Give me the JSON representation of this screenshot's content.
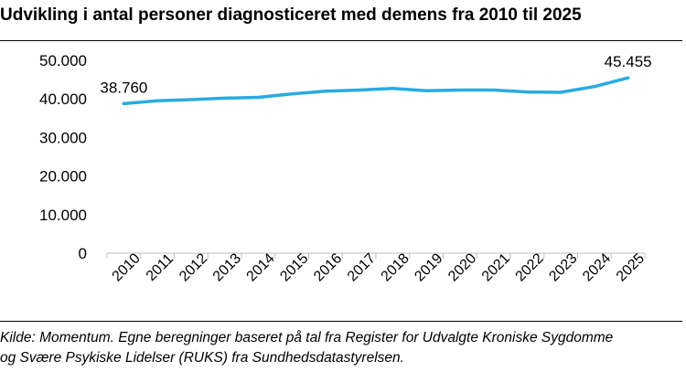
{
  "title": "Udvikling i antal personer diagnosticeret med demens fra 2010 til 2025",
  "source": {
    "line1": "Kilde: Momentum. Egne beregninger baseret på tal fra Register for Udvalgte Kroniske Sygdomme",
    "line2": "og Svære Psykiske Lidelser (RUKS) fra Sundhedsdatastyrelsen."
  },
  "colors": {
    "line": "#29ABE2",
    "axis": "#BFBFBF"
  },
  "chart_data": {
    "type": "line",
    "title": "Udvikling i antal personer diagnosticeret med demens fra 2010 til 2025",
    "categories": [
      "2010",
      "2011",
      "2012",
      "2013",
      "2014",
      "2015",
      "2016",
      "2017",
      "2018",
      "2019",
      "2020",
      "2021",
      "2022",
      "2023",
      "2024",
      "2025"
    ],
    "series": [
      {
        "values": [
          38760,
          39500,
          39800,
          40200,
          40400,
          41300,
          42000,
          42300,
          42700,
          42100,
          42300,
          42300,
          41800,
          41700,
          43200,
          45455
        ]
      }
    ],
    "ylim": [
      0,
      50000
    ],
    "yticks": [
      0,
      10000,
      20000,
      30000,
      40000,
      50000
    ],
    "ytick_labels": [
      "0",
      "10.000",
      "20.000",
      "30.000",
      "40.000",
      "50.000"
    ],
    "data_labels": [
      {
        "index": 0,
        "text": "38.760"
      },
      {
        "index": 15,
        "text": "45.455"
      }
    ],
    "grid": false,
    "legend": "none"
  }
}
